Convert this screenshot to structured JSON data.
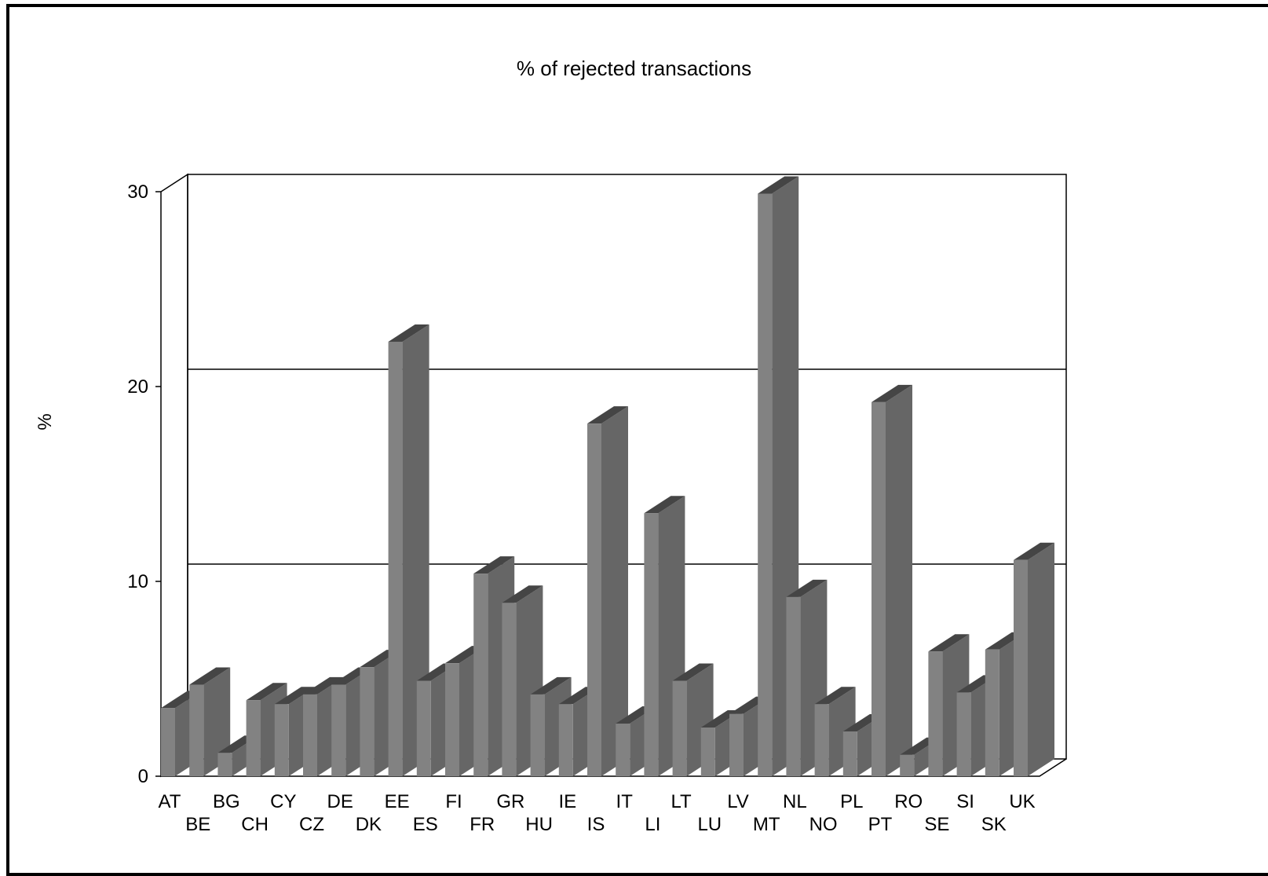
{
  "chart_data": {
    "type": "bar",
    "title": "% of rejected transactions",
    "xlabel": "",
    "ylabel": "%",
    "ylim": [
      0,
      30
    ],
    "yticks": [
      0,
      10,
      20,
      30
    ],
    "grid": true,
    "style": "3d",
    "categories": [
      "AT",
      "BE",
      "BG",
      "CH",
      "CY",
      "CZ",
      "DE",
      "DK",
      "EE",
      "ES",
      "FI",
      "FR",
      "GR",
      "HU",
      "IE",
      "IS",
      "IT",
      "LI",
      "LT",
      "LU",
      "LV",
      "MT",
      "NL",
      "NO",
      "PL",
      "PT",
      "RO",
      "SE",
      "SI",
      "SK",
      "UK"
    ],
    "values": [
      3.5,
      4.7,
      1.2,
      3.9,
      3.7,
      4.2,
      4.7,
      5.6,
      22.3,
      4.9,
      5.8,
      10.4,
      8.9,
      4.2,
      3.7,
      18.1,
      2.7,
      13.5,
      4.9,
      2.5,
      3.2,
      29.9,
      9.2,
      3.7,
      2.3,
      19.2,
      1.1,
      6.4,
      4.3,
      6.5,
      11.1
    ],
    "colors": {
      "front": "#828282",
      "side": "#666666",
      "top": "#454545"
    }
  }
}
